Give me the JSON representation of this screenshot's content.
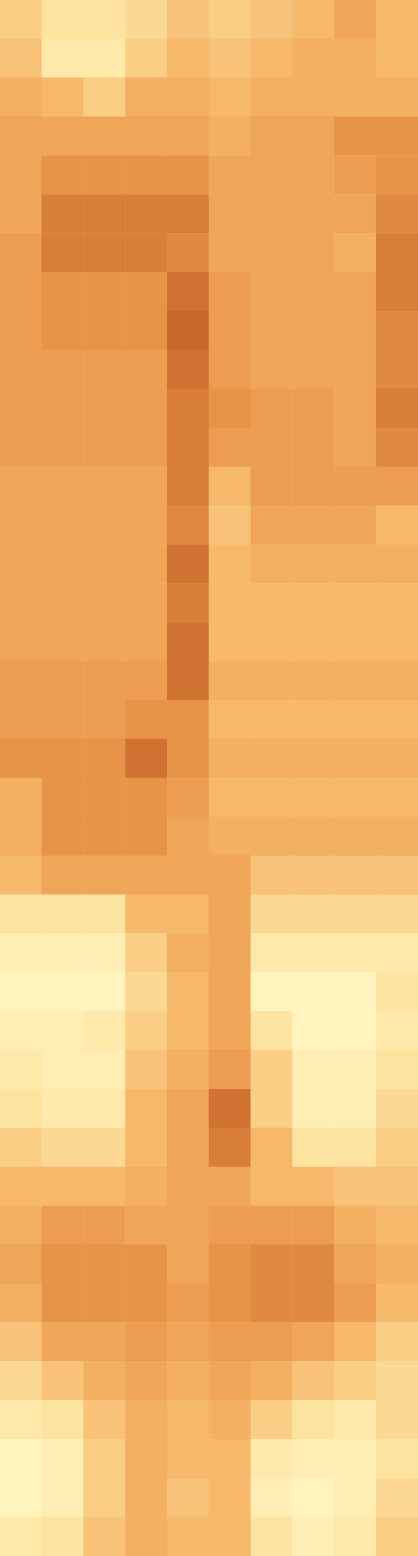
{
  "chart_data": {
    "type": "heatmap",
    "tick_labels": false,
    "color_range": [
      0,
      1
    ],
    "cells": [
      [
        0.3,
        0.2,
        0.2,
        0.25,
        0.35,
        0.3,
        0.35,
        0.4,
        0.5,
        0.4
      ],
      [
        0.35,
        0.15,
        0.15,
        0.3,
        0.4,
        0.35,
        0.4,
        0.45,
        0.45,
        0.4
      ],
      [
        0.45,
        0.4,
        0.3,
        0.45,
        0.45,
        0.4,
        0.45,
        0.45,
        0.45,
        0.45
      ],
      [
        0.5,
        0.5,
        0.5,
        0.5,
        0.5,
        0.45,
        0.5,
        0.5,
        0.6,
        0.6
      ],
      [
        0.5,
        0.6,
        0.6,
        0.6,
        0.6,
        0.5,
        0.5,
        0.5,
        0.55,
        0.6
      ],
      [
        0.5,
        0.7,
        0.7,
        0.7,
        0.7,
        0.5,
        0.5,
        0.5,
        0.5,
        0.65
      ],
      [
        0.55,
        0.7,
        0.7,
        0.7,
        0.65,
        0.5,
        0.5,
        0.5,
        0.45,
        0.7
      ],
      [
        0.55,
        0.6,
        0.6,
        0.6,
        0.75,
        0.55,
        0.5,
        0.5,
        0.5,
        0.7
      ],
      [
        0.55,
        0.6,
        0.6,
        0.6,
        0.8,
        0.55,
        0.5,
        0.5,
        0.5,
        0.65
      ],
      [
        0.55,
        0.55,
        0.55,
        0.55,
        0.75,
        0.55,
        0.5,
        0.5,
        0.5,
        0.65
      ],
      [
        0.55,
        0.55,
        0.55,
        0.55,
        0.7,
        0.6,
        0.55,
        0.55,
        0.5,
        0.7
      ],
      [
        0.55,
        0.55,
        0.55,
        0.55,
        0.7,
        0.55,
        0.55,
        0.55,
        0.5,
        0.65
      ],
      [
        0.5,
        0.5,
        0.5,
        0.5,
        0.7,
        0.4,
        0.55,
        0.55,
        0.55,
        0.55
      ],
      [
        0.5,
        0.5,
        0.5,
        0.5,
        0.65,
        0.35,
        0.5,
        0.5,
        0.5,
        0.4
      ],
      [
        0.5,
        0.5,
        0.5,
        0.5,
        0.75,
        0.4,
        0.45,
        0.45,
        0.45,
        0.45
      ],
      [
        0.5,
        0.5,
        0.5,
        0.5,
        0.7,
        0.4,
        0.4,
        0.4,
        0.4,
        0.4
      ],
      [
        0.5,
        0.5,
        0.5,
        0.5,
        0.75,
        0.4,
        0.4,
        0.4,
        0.4,
        0.4
      ],
      [
        0.55,
        0.55,
        0.55,
        0.55,
        0.75,
        0.45,
        0.45,
        0.45,
        0.45,
        0.45
      ],
      [
        0.55,
        0.55,
        0.55,
        0.6,
        0.6,
        0.4,
        0.4,
        0.4,
        0.4,
        0.4
      ],
      [
        0.6,
        0.6,
        0.6,
        0.75,
        0.6,
        0.45,
        0.45,
        0.45,
        0.45,
        0.45
      ],
      [
        0.45,
        0.6,
        0.6,
        0.6,
        0.55,
        0.4,
        0.4,
        0.4,
        0.4,
        0.4
      ],
      [
        0.45,
        0.6,
        0.6,
        0.6,
        0.5,
        0.45,
        0.45,
        0.45,
        0.45,
        0.45
      ],
      [
        0.4,
        0.5,
        0.5,
        0.5,
        0.5,
        0.5,
        0.35,
        0.35,
        0.35,
        0.35
      ],
      [
        0.2,
        0.2,
        0.2,
        0.4,
        0.4,
        0.5,
        0.25,
        0.25,
        0.25,
        0.25
      ],
      [
        0.1,
        0.1,
        0.1,
        0.3,
        0.45,
        0.5,
        0.15,
        0.15,
        0.15,
        0.15
      ],
      [
        0.05,
        0.05,
        0.05,
        0.25,
        0.4,
        0.5,
        0.05,
        0.05,
        0.05,
        0.2
      ],
      [
        0.1,
        0.1,
        0.15,
        0.3,
        0.4,
        0.5,
        0.2,
        0.05,
        0.05,
        0.15
      ],
      [
        0.15,
        0.1,
        0.1,
        0.35,
        0.45,
        0.55,
        0.3,
        0.1,
        0.1,
        0.2
      ],
      [
        0.2,
        0.15,
        0.15,
        0.4,
        0.5,
        0.75,
        0.3,
        0.1,
        0.1,
        0.25
      ],
      [
        0.3,
        0.25,
        0.25,
        0.4,
        0.5,
        0.7,
        0.4,
        0.2,
        0.2,
        0.3
      ],
      [
        0.4,
        0.4,
        0.4,
        0.45,
        0.5,
        0.5,
        0.4,
        0.4,
        0.35,
        0.35
      ],
      [
        0.45,
        0.55,
        0.55,
        0.5,
        0.5,
        0.55,
        0.55,
        0.55,
        0.45,
        0.4
      ],
      [
        0.5,
        0.6,
        0.6,
        0.6,
        0.5,
        0.6,
        0.65,
        0.65,
        0.5,
        0.45
      ],
      [
        0.45,
        0.6,
        0.6,
        0.6,
        0.55,
        0.6,
        0.65,
        0.65,
        0.55,
        0.4
      ],
      [
        0.35,
        0.5,
        0.5,
        0.55,
        0.5,
        0.55,
        0.55,
        0.5,
        0.4,
        0.3
      ],
      [
        0.25,
        0.35,
        0.45,
        0.5,
        0.45,
        0.5,
        0.45,
        0.35,
        0.3,
        0.25
      ],
      [
        0.15,
        0.2,
        0.35,
        0.45,
        0.4,
        0.45,
        0.3,
        0.2,
        0.15,
        0.25
      ],
      [
        0.05,
        0.1,
        0.3,
        0.45,
        0.4,
        0.4,
        0.15,
        0.1,
        0.1,
        0.2
      ],
      [
        0.05,
        0.1,
        0.3,
        0.45,
        0.35,
        0.4,
        0.1,
        0.05,
        0.1,
        0.25
      ],
      [
        0.15,
        0.2,
        0.35,
        0.45,
        0.4,
        0.4,
        0.2,
        0.1,
        0.15,
        0.3
      ]
    ]
  }
}
